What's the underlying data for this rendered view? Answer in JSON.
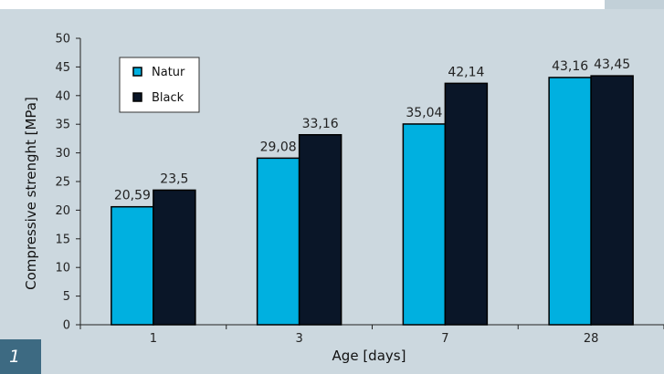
{
  "figure": {
    "number": "1"
  },
  "chart_data": {
    "type": "bar",
    "categories": [
      "1",
      "3",
      "7",
      "28"
    ],
    "series": [
      {
        "name": "Natur",
        "values": [
          20.59,
          29.08,
          35.04,
          43.16
        ],
        "labels": [
          "20,59",
          "29,08",
          "35,04",
          "43,16"
        ],
        "color": "#00b0e0"
      },
      {
        "name": "Black",
        "values": [
          23.5,
          33.16,
          42.14,
          43.45
        ],
        "labels": [
          "23,5",
          "33,16",
          "42,14",
          "43,45"
        ],
        "color": "#0a1628"
      }
    ],
    "xlabel": "Age [days]",
    "ylabel": "Compressive strenght  [MPa]",
    "ylim": [
      0,
      50
    ],
    "yticks": [
      0,
      5,
      10,
      15,
      20,
      25,
      30,
      35,
      40,
      45,
      50
    ],
    "grid": false,
    "legend": "top-left"
  }
}
